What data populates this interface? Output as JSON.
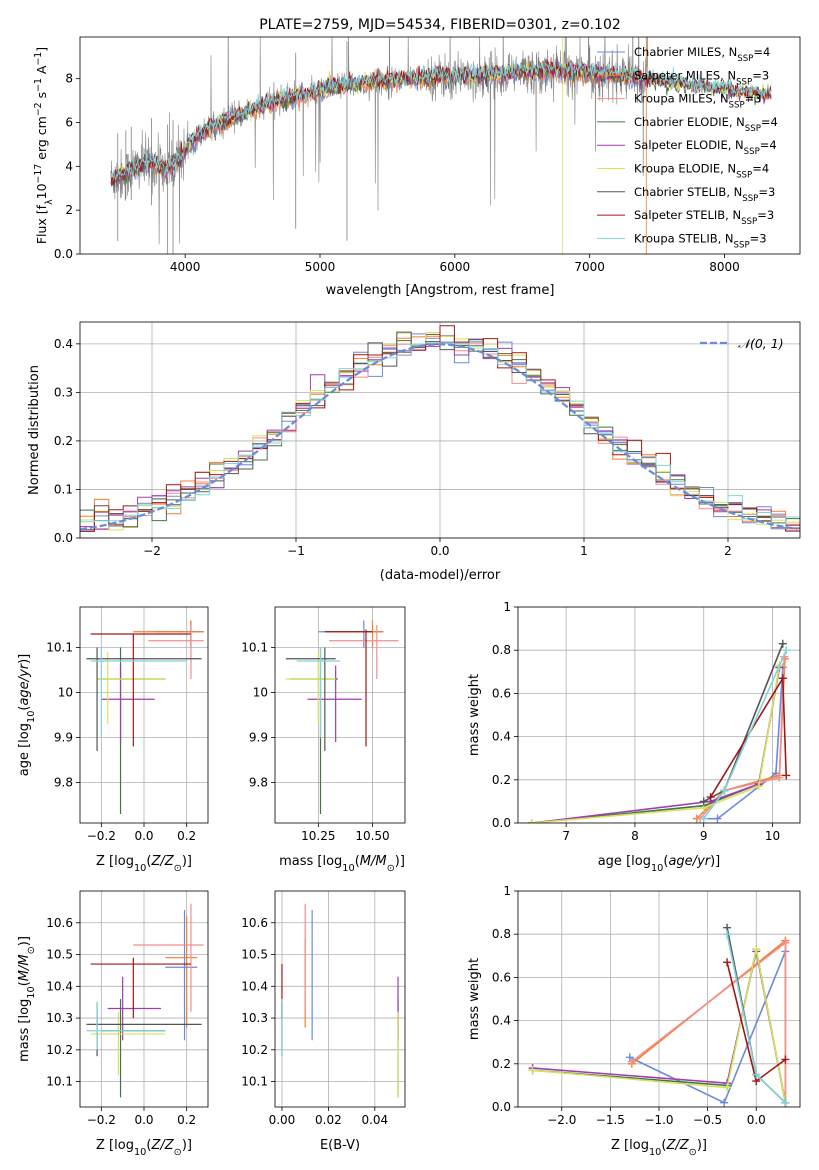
{
  "chart_data": [
    {
      "id": "spectrum",
      "type": "line",
      "title": "PLATE=2759, MJD=54534, FIBERID=0301, z=0.102",
      "xlabel": "wavelength [Angstrom, rest frame]",
      "ylabel": "Flux [f",
      "ylabel_sub": "λ",
      "ylabel_rest": "10",
      "ylabel_sup": "−17",
      "ylabel_tail": " erg cm",
      "ylabel_sup2": "−2",
      "ylabel_tail2": " s",
      "ylabel_sup3": "−1",
      "ylabel_tail3": " A",
      "ylabel_sup4": "−1",
      "ylabel_end": "]",
      "xlim": [
        3220,
        8560
      ],
      "ylim": [
        0,
        9.9
      ],
      "xticks": [
        4000,
        5000,
        6000,
        7000,
        8000
      ],
      "yticks": [
        0,
        2,
        4,
        6,
        8
      ],
      "legend_position": "right",
      "data_trend": {
        "wavelength": [
          3450,
          3550,
          3650,
          3750,
          3850,
          3950,
          4050,
          4150,
          4300,
          4500,
          4700,
          4900,
          5100,
          5300,
          5500,
          5700,
          5900,
          6100,
          6300,
          6500,
          6700,
          6900,
          7100,
          7300,
          7500,
          7700,
          7900,
          8100,
          8300
        ],
        "flux": [
          3.4,
          3.6,
          4.0,
          4.2,
          3.8,
          4.3,
          5.2,
          5.6,
          6.1,
          6.6,
          7.0,
          7.3,
          7.6,
          7.8,
          7.9,
          8.0,
          8.1,
          8.15,
          8.2,
          8.3,
          8.4,
          8.3,
          8.2,
          8.1,
          7.9,
          7.7,
          7.6,
          7.4,
          7.3
        ]
      },
      "series": [
        {
          "name": "Chabrier MILES, N",
          "sub": "SSP",
          "suffix": "=4",
          "color": "#6a8bdc"
        },
        {
          "name": "Salpeter MILES, N",
          "sub": "SSP",
          "suffix": "=3",
          "color": "#f57f2a"
        },
        {
          "name": "Kroupa MILES, N",
          "sub": "SSP",
          "suffix": "=3",
          "color": "#f28e8e"
        },
        {
          "name": "Chabrier ELODIE, N",
          "sub": "SSP",
          "suffix": "=4",
          "color": "#46734a"
        },
        {
          "name": "Salpeter ELODIE, N",
          "sub": "SSP",
          "suffix": "=4",
          "color": "#a03cb3"
        },
        {
          "name": "Kroupa ELODIE, N",
          "sub": "SSP",
          "suffix": "=4",
          "color": "#d6e25a"
        },
        {
          "name": "Chabrier STELIB, N",
          "sub": "SSP",
          "suffix": "=3",
          "color": "#555555"
        },
        {
          "name": "Salpeter STELIB, N",
          "sub": "SSP",
          "suffix": "=3",
          "color": "#a01818"
        },
        {
          "name": "Kroupa STELIB, N",
          "sub": "SSP",
          "suffix": "=3",
          "color": "#7fd4dc"
        }
      ]
    },
    {
      "id": "residuals",
      "type": "step-histogram",
      "xlabel": "(data-model)/error",
      "ylabel": "Normed distribution",
      "xlim": [
        -2.5,
        2.5
      ],
      "ylim": [
        0,
        0.445
      ],
      "xticks": [
        -2,
        -1,
        0,
        1,
        2
      ],
      "yticks": [
        0.0,
        0.1,
        0.2,
        0.3,
        0.4
      ],
      "grid": true,
      "legend_position": "top-right",
      "reference_curve": {
        "name": "𝒩(0, 1)",
        "mu": 0,
        "sigma": 1,
        "color": "#6a8bdc"
      },
      "bin_width": 0.1
    },
    {
      "id": "age_vs_Z",
      "type": "errorbar",
      "xlabel": "Z [log",
      "xlabel_sub": "10",
      "xlabel_rest": "(Z/Z",
      "xlabel_sub2": "⊙",
      "xlabel_end": ")]",
      "ylabel": "age  [log",
      "ylabel_sub": "10",
      "ylabel_rest": "(age/yr)]",
      "xlim": [
        -0.3,
        0.3
      ],
      "ylim": [
        9.71,
        10.19
      ],
      "xticks": [
        -0.2,
        0.0,
        0.2
      ],
      "yticks": [
        9.8,
        9.9,
        10.0,
        10.1
      ],
      "grid": true,
      "points": [
        {
          "x": 0.22,
          "y": 10.135,
          "xlo": 0.05,
          "xhi": 0.28,
          "ylo": 10.1,
          "yhi": 10.16,
          "color": "#6a8bdc"
        },
        {
          "x": 0.22,
          "y": 10.135,
          "xlo": -0.05,
          "xhi": 0.28,
          "ylo": 10.1,
          "yhi": 10.16,
          "color": "#f57f2a"
        },
        {
          "x": 0.22,
          "y": 10.115,
          "xlo": 0.02,
          "xhi": 0.28,
          "ylo": 10.03,
          "yhi": 10.15,
          "color": "#f28e8e"
        },
        {
          "x": -0.11,
          "y": 10.03,
          "xlo": -0.22,
          "xhi": 0.1,
          "ylo": 9.73,
          "yhi": 10.1,
          "color": "#46734a"
        },
        {
          "x": -0.11,
          "y": 9.985,
          "xlo": -0.2,
          "xhi": 0.05,
          "ylo": 9.89,
          "yhi": 10.06,
          "color": "#a03cb3"
        },
        {
          "x": -0.17,
          "y": 10.03,
          "xlo": -0.22,
          "xhi": 0.1,
          "ylo": 9.93,
          "yhi": 10.09,
          "color": "#d6e25a"
        },
        {
          "x": -0.22,
          "y": 10.075,
          "xlo": -0.27,
          "xhi": 0.27,
          "ylo": 9.87,
          "yhi": 10.1,
          "color": "#555555"
        },
        {
          "x": -0.05,
          "y": 10.13,
          "xlo": -0.25,
          "xhi": 0.22,
          "ylo": 9.88,
          "yhi": 10.13,
          "color": "#a01818"
        },
        {
          "x": -0.2,
          "y": 10.07,
          "xlo": -0.25,
          "xhi": 0.2,
          "ylo": 9.9,
          "yhi": 10.1,
          "color": "#7fd4dc"
        }
      ]
    },
    {
      "id": "age_vs_mass",
      "type": "errorbar",
      "xlabel": "mass [log",
      "xlabel_sub": "10",
      "xlabel_rest": "(M/M",
      "xlabel_sub2": "⊙",
      "xlabel_end": ")]",
      "xlim": [
        10.05,
        10.65
      ],
      "ylim": [
        9.71,
        10.19
      ],
      "xticks": [
        10.25,
        10.5
      ],
      "xtick_labels": [
        "10.25",
        "10.50"
      ],
      "yticks": [
        9.8,
        9.9,
        10.0,
        10.1
      ],
      "grid": true,
      "points": [
        {
          "x": 10.46,
          "y": 10.135,
          "xlo": 10.25,
          "xhi": 10.55,
          "ylo": 10.1,
          "yhi": 10.16,
          "color": "#6a8bdc"
        },
        {
          "x": 10.5,
          "y": 10.135,
          "xlo": 10.3,
          "xhi": 10.55,
          "ylo": 10.1,
          "yhi": 10.16,
          "color": "#f57f2a"
        },
        {
          "x": 10.52,
          "y": 10.115,
          "xlo": 10.3,
          "xhi": 10.62,
          "ylo": 10.03,
          "yhi": 10.15,
          "color": "#f28e8e"
        },
        {
          "x": 10.26,
          "y": 10.03,
          "xlo": 10.12,
          "xhi": 10.34,
          "ylo": 9.73,
          "yhi": 10.1,
          "color": "#46734a"
        },
        {
          "x": 10.33,
          "y": 9.985,
          "xlo": 10.2,
          "xhi": 10.45,
          "ylo": 9.89,
          "yhi": 10.06,
          "color": "#a03cb3"
        },
        {
          "x": 10.25,
          "y": 10.03,
          "xlo": 10.1,
          "xhi": 10.33,
          "ylo": 9.93,
          "yhi": 10.09,
          "color": "#d6e25a"
        },
        {
          "x": 10.28,
          "y": 10.075,
          "xlo": 10.1,
          "xhi": 10.33,
          "ylo": 9.87,
          "yhi": 10.1,
          "color": "#555555"
        },
        {
          "x": 10.47,
          "y": 10.135,
          "xlo": 10.28,
          "xhi": 10.5,
          "ylo": 9.88,
          "yhi": 10.14,
          "color": "#a01818"
        },
        {
          "x": 10.26,
          "y": 10.07,
          "xlo": 10.15,
          "xhi": 10.35,
          "ylo": 9.9,
          "yhi": 10.1,
          "color": "#7fd4dc"
        }
      ]
    },
    {
      "id": "weight_vs_age",
      "type": "line",
      "xlabel": "age  [log",
      "xlabel_sub": "10",
      "xlabel_rest": "(age/yr)]",
      "ylabel": "mass weight",
      "xlim": [
        6.3,
        10.4
      ],
      "ylim": [
        0,
        1.0
      ],
      "xticks": [
        7,
        8,
        9,
        10
      ],
      "yticks": [
        0.0,
        0.2,
        0.4,
        0.6,
        0.8,
        1.0
      ],
      "grid": true,
      "series": [
        {
          "color": "#6a8bdc",
          "x": [
            9.0,
            9.2,
            10.05,
            10.15
          ],
          "y": [
            0.02,
            0.02,
            0.23,
            0.72
          ]
        },
        {
          "color": "#f57f2a",
          "x": [
            8.9,
            9.3,
            10.1,
            10.18
          ],
          "y": [
            0.02,
            0.15,
            0.22,
            0.76
          ]
        },
        {
          "color": "#f28e8e",
          "x": [
            8.95,
            9.3,
            10.1,
            10.17
          ],
          "y": [
            0.02,
            0.15,
            0.21,
            0.77
          ]
        },
        {
          "color": "#46734a",
          "x": [
            6.5,
            9.0,
            9.8,
            10.1
          ],
          "y": [
            0.0,
            0.08,
            0.18,
            0.72
          ]
        },
        {
          "color": "#a03cb3",
          "x": [
            6.5,
            9.1,
            9.8,
            10.1
          ],
          "y": [
            0.0,
            0.1,
            0.18,
            0.72
          ]
        },
        {
          "color": "#d6e25a",
          "x": [
            6.5,
            9.0,
            9.8,
            10.1
          ],
          "y": [
            0.0,
            0.07,
            0.17,
            0.73
          ]
        },
        {
          "color": "#555555",
          "x": [
            9.0,
            9.3,
            10.15
          ],
          "y": [
            0.1,
            0.15,
            0.83
          ]
        },
        {
          "color": "#a01818",
          "x": [
            9.1,
            10.15,
            10.2
          ],
          "y": [
            0.12,
            0.67,
            0.22
          ]
        },
        {
          "color": "#7fd4dc",
          "x": [
            9.0,
            9.3,
            10.2
          ],
          "y": [
            0.02,
            0.15,
            0.8
          ]
        }
      ]
    },
    {
      "id": "mass_vs_Z",
      "type": "errorbar",
      "xlabel": "Z [log",
      "xlabel_sub": "10",
      "xlabel_rest": "(Z/Z",
      "xlabel_sub2": "⊙",
      "xlabel_end": ")]",
      "ylabel": "mass [log",
      "ylabel_sub": "10",
      "ylabel_rest": "(M/M",
      "ylabel_sub2": "⊙",
      "ylabel_end": ")]",
      "xlim": [
        -0.3,
        0.3
      ],
      "ylim": [
        10.02,
        10.7
      ],
      "xticks": [
        -0.2,
        0.0,
        0.2
      ],
      "yticks": [
        10.1,
        10.2,
        10.3,
        10.4,
        10.5,
        10.6
      ],
      "grid": true,
      "points": [
        {
          "x": 0.19,
          "y": 10.46,
          "xlo": 0.1,
          "xhi": 0.25,
          "ylo": 10.23,
          "yhi": 10.64,
          "color": "#6a8bdc"
        },
        {
          "x": 0.2,
          "y": 10.49,
          "xlo": 0.1,
          "xhi": 0.25,
          "ylo": 10.27,
          "yhi": 10.62,
          "color": "#f57f2a"
        },
        {
          "x": 0.22,
          "y": 10.53,
          "xlo": -0.05,
          "xhi": 0.28,
          "ylo": 10.32,
          "yhi": 10.66,
          "color": "#f28e8e"
        },
        {
          "x": -0.11,
          "y": 10.26,
          "xlo": -0.2,
          "xhi": 0.1,
          "ylo": 10.05,
          "yhi": 10.36,
          "color": "#46734a"
        },
        {
          "x": -0.1,
          "y": 10.33,
          "xlo": -0.17,
          "xhi": 0.08,
          "ylo": 10.23,
          "yhi": 10.43,
          "color": "#a03cb3"
        },
        {
          "x": -0.12,
          "y": 10.25,
          "xlo": -0.25,
          "xhi": 0.1,
          "ylo": 10.12,
          "yhi": 10.32,
          "color": "#d6e25a"
        },
        {
          "x": -0.22,
          "y": 10.28,
          "xlo": -0.27,
          "xhi": 0.27,
          "ylo": 10.18,
          "yhi": 10.35,
          "color": "#555555"
        },
        {
          "x": -0.05,
          "y": 10.47,
          "xlo": -0.25,
          "xhi": 0.22,
          "ylo": 10.3,
          "yhi": 10.49,
          "color": "#a01818"
        },
        {
          "x": -0.22,
          "y": 10.26,
          "xlo": -0.27,
          "xhi": 0.1,
          "ylo": 10.2,
          "yhi": 10.35,
          "color": "#7fd4dc"
        }
      ]
    },
    {
      "id": "mass_vs_ebv",
      "type": "errorbar",
      "xlabel": "E(B-V)",
      "xlim": [
        -0.003,
        0.053
      ],
      "ylim": [
        10.02,
        10.7
      ],
      "xticks": [
        0.0,
        0.02,
        0.04
      ],
      "xtick_labels": [
        "0.00",
        "0.02",
        "0.04"
      ],
      "yticks": [
        10.1,
        10.2,
        10.3,
        10.4,
        10.5,
        10.6
      ],
      "grid": true,
      "points": [
        {
          "x": 0.013,
          "y": 10.46,
          "ylo": 10.23,
          "yhi": 10.64,
          "color": "#6a8bdc"
        },
        {
          "x": 0.01,
          "y": 10.49,
          "ylo": 10.27,
          "yhi": 10.55,
          "color": "#f57f2a"
        },
        {
          "x": 0.01,
          "y": 10.53,
          "ylo": 10.32,
          "yhi": 10.66,
          "color": "#f28e8e"
        },
        {
          "x": 0.05,
          "y": 10.26,
          "ylo": 10.05,
          "yhi": 10.36,
          "color": "#46734a"
        },
        {
          "x": 0.05,
          "y": 10.33,
          "ylo": 10.23,
          "yhi": 10.43,
          "color": "#a03cb3"
        },
        {
          "x": 0.05,
          "y": 10.25,
          "ylo": 10.05,
          "yhi": 10.32,
          "color": "#d6e25a"
        },
        {
          "x": 0.0,
          "y": 10.28,
          "ylo": 10.18,
          "yhi": 10.35,
          "color": "#555555"
        },
        {
          "x": 0.0,
          "y": 10.47,
          "ylo": 10.3,
          "yhi": 10.47,
          "color": "#a01818"
        },
        {
          "x": 0.0,
          "y": 10.26,
          "ylo": 10.18,
          "yhi": 10.36,
          "color": "#7fd4dc"
        }
      ]
    },
    {
      "id": "weight_vs_Z",
      "type": "line",
      "xlabel": "Z [log",
      "xlabel_sub": "10",
      "xlabel_rest": "(Z/Z",
      "xlabel_sub2": "⊙",
      "xlabel_end": ")]",
      "ylabel": "mass weight",
      "xlim": [
        -2.45,
        0.45
      ],
      "ylim": [
        0,
        1.0
      ],
      "xticks": [
        -2.0,
        -1.5,
        -1.0,
        -0.5,
        0.0
      ],
      "xtick_labels": [
        "−2.0",
        "−1.5",
        "−1.0",
        "−0.5",
        "0.0"
      ],
      "yticks": [
        0.0,
        0.2,
        0.4,
        0.6,
        0.8,
        1.0
      ],
      "grid": true,
      "series": [
        {
          "color": "#6a8bdc",
          "x": [
            -1.3,
            -0.33,
            0.3,
            0.3
          ],
          "y": [
            0.23,
            0.02,
            0.72,
            0.76
          ]
        },
        {
          "color": "#f57f2a",
          "x": [
            -1.28,
            0.3,
            0.3
          ],
          "y": [
            0.2,
            0.77,
            0.02
          ]
        },
        {
          "color": "#f28e8e",
          "x": [
            -1.28,
            0.3,
            0.3
          ],
          "y": [
            0.21,
            0.76,
            0.02
          ]
        },
        {
          "color": "#46734a",
          "x": [
            -2.3,
            -0.3,
            0.0,
            0.3
          ],
          "y": [
            0.17,
            0.1,
            0.73,
            0.02
          ]
        },
        {
          "color": "#a03cb3",
          "x": [
            -2.3,
            -0.3,
            0.0,
            0.3
          ],
          "y": [
            0.18,
            0.11,
            0.72,
            0.02
          ]
        },
        {
          "color": "#d6e25a",
          "x": [
            -2.3,
            -0.3,
            0.0,
            0.3
          ],
          "y": [
            0.17,
            0.09,
            0.73,
            0.02
          ]
        },
        {
          "color": "#555555",
          "x": [
            -0.3,
            0.0,
            0.3
          ],
          "y": [
            0.83,
            0.15,
            0.02
          ]
        },
        {
          "color": "#a01818",
          "x": [
            -0.3,
            0.0,
            0.3
          ],
          "y": [
            0.67,
            0.12,
            0.22
          ]
        },
        {
          "color": "#7fd4dc",
          "x": [
            -0.3,
            0.0,
            0.3
          ],
          "y": [
            0.8,
            0.15,
            0.02
          ]
        }
      ]
    }
  ]
}
